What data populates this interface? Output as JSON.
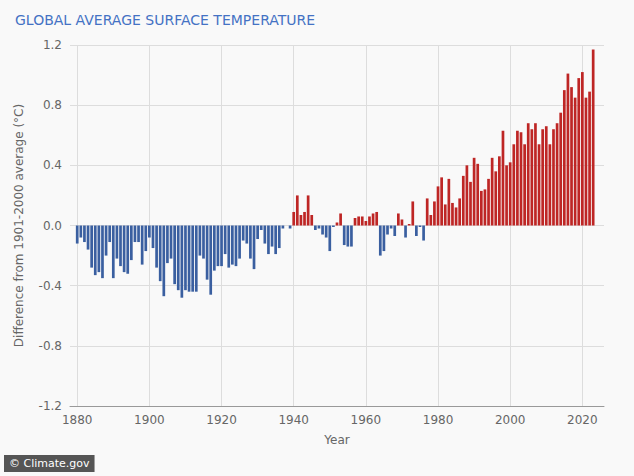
{
  "chart_data": {
    "type": "bar",
    "title": "GLOBAL AVERAGE SURFACE TEMPERATURE",
    "xlabel": "Year",
    "ylabel": "Difference from 1901-2000 average (°C)",
    "annotations": [
      "© Climate.gov"
    ],
    "x": [
      1880,
      1881,
      1882,
      1883,
      1884,
      1885,
      1886,
      1887,
      1888,
      1889,
      1890,
      1891,
      1892,
      1893,
      1894,
      1895,
      1896,
      1897,
      1898,
      1899,
      1900,
      1901,
      1902,
      1903,
      1904,
      1905,
      1906,
      1907,
      1908,
      1909,
      1910,
      1911,
      1912,
      1913,
      1914,
      1915,
      1916,
      1917,
      1918,
      1919,
      1920,
      1921,
      1922,
      1923,
      1924,
      1925,
      1926,
      1927,
      1928,
      1929,
      1930,
      1931,
      1932,
      1933,
      1934,
      1935,
      1936,
      1937,
      1938,
      1939,
      1940,
      1941,
      1942,
      1943,
      1944,
      1945,
      1946,
      1947,
      1948,
      1949,
      1950,
      1951,
      1952,
      1953,
      1954,
      1955,
      1956,
      1957,
      1958,
      1959,
      1960,
      1961,
      1962,
      1963,
      1964,
      1965,
      1966,
      1967,
      1968,
      1969,
      1970,
      1971,
      1972,
      1973,
      1974,
      1975,
      1976,
      1977,
      1978,
      1979,
      1980,
      1981,
      1982,
      1983,
      1984,
      1985,
      1986,
      1987,
      1988,
      1989,
      1990,
      1991,
      1992,
      1993,
      1994,
      1995,
      1996,
      1997,
      1998,
      1999,
      2000,
      2001,
      2002,
      2003,
      2004,
      2005,
      2006,
      2007,
      2008,
      2009,
      2010,
      2011,
      2012,
      2013,
      2014,
      2015,
      2016,
      2017,
      2018,
      2019,
      2020,
      2021,
      2022,
      2023
    ],
    "values": [
      -0.12,
      -0.08,
      -0.11,
      -0.16,
      -0.28,
      -0.33,
      -0.31,
      -0.35,
      -0.2,
      -0.11,
      -0.35,
      -0.22,
      -0.27,
      -0.31,
      -0.32,
      -0.23,
      -0.11,
      -0.11,
      -0.26,
      -0.17,
      -0.08,
      -0.15,
      -0.28,
      -0.37,
      -0.47,
      -0.25,
      -0.22,
      -0.39,
      -0.43,
      -0.48,
      -0.43,
      -0.44,
      -0.44,
      -0.44,
      -0.2,
      -0.22,
      -0.36,
      -0.46,
      -0.3,
      -0.27,
      -0.27,
      -0.19,
      -0.28,
      -0.26,
      -0.27,
      -0.22,
      -0.1,
      -0.12,
      -0.22,
      -0.29,
      -0.09,
      -0.03,
      -0.12,
      -0.19,
      -0.14,
      -0.19,
      -0.15,
      -0.02,
      -0.0,
      -0.02,
      0.09,
      0.2,
      0.07,
      0.09,
      0.2,
      0.07,
      -0.03,
      -0.02,
      -0.06,
      -0.08,
      -0.17,
      -0.01,
      0.02,
      0.08,
      -0.13,
      -0.14,
      -0.14,
      0.05,
      0.06,
      0.06,
      0.03,
      0.06,
      0.08,
      0.09,
      -0.2,
      -0.17,
      -0.06,
      -0.02,
      -0.07,
      0.08,
      0.04,
      -0.08,
      0.01,
      0.16,
      -0.07,
      -0.01,
      -0.1,
      0.18,
      0.07,
      0.16,
      0.26,
      0.32,
      0.14,
      0.31,
      0.15,
      0.12,
      0.18,
      0.33,
      0.4,
      0.29,
      0.45,
      0.41,
      0.23,
      0.24,
      0.31,
      0.45,
      0.36,
      0.46,
      0.63,
      0.4,
      0.42,
      0.54,
      0.63,
      0.62,
      0.54,
      0.68,
      0.64,
      0.68,
      0.54,
      0.64,
      0.66,
      0.54,
      0.64,
      0.68,
      0.75,
      0.9,
      1.01,
      0.92,
      0.85,
      0.98,
      1.02,
      0.85,
      0.89,
      1.17
    ],
    "colors": [
      "#3A5FA0",
      "#3A5FA0",
      "#3A5FA0",
      "#3A5FA0",
      "#3A5FA0",
      "#3A5FA0",
      "#3A5FA0",
      "#3A5FA0",
      "#3A5FA0",
      "#3A5FA0",
      "#3A5FA0",
      "#3A5FA0",
      "#3A5FA0",
      "#3A5FA0",
      "#3A5FA0",
      "#3A5FA0",
      "#3A5FA0",
      "#3A5FA0",
      "#3A5FA0",
      "#3A5FA0",
      "#3A5FA0",
      "#3A5FA0",
      "#3A5FA0",
      "#3A5FA0",
      "#3A5FA0",
      "#3A5FA0",
      "#3A5FA0",
      "#3A5FA0",
      "#3A5FA0",
      "#3A5FA0",
      "#3A5FA0",
      "#3A5FA0",
      "#3A5FA0",
      "#3A5FA0",
      "#3A5FA0",
      "#3A5FA0",
      "#3A5FA0",
      "#3A5FA0",
      "#3A5FA0",
      "#3A5FA0",
      "#3A5FA0",
      "#3A5FA0",
      "#3A5FA0",
      "#3A5FA0",
      "#3A5FA0",
      "#3A5FA0",
      "#3A5FA0",
      "#3A5FA0",
      "#3A5FA0",
      "#3A5FA0",
      "#3A5FA0",
      "#3A5FA0",
      "#3A5FA0",
      "#3A5FA0",
      "#3A5FA0",
      "#3A5FA0",
      "#3A5FA0",
      "#3A5FA0",
      "#BE2625",
      "#3A5FA0",
      "#BE2625",
      "#BE2625",
      "#BE2625",
      "#BE2625",
      "#BE2625",
      "#BE2625",
      "#3A5FA0",
      "#3A5FA0",
      "#3A5FA0",
      "#3A5FA0",
      "#3A5FA0",
      "#3A5FA0",
      "#BE2625",
      "#BE2625",
      "#3A5FA0",
      "#3A5FA0",
      "#3A5FA0",
      "#BE2625",
      "#BE2625",
      "#BE2625",
      "#BE2625",
      "#BE2625",
      "#BE2625",
      "#BE2625",
      "#3A5FA0",
      "#3A5FA0",
      "#3A5FA0",
      "#3A5FA0",
      "#3A5FA0",
      "#BE2625",
      "#BE2625",
      "#3A5FA0",
      "#BE2625",
      "#BE2625",
      "#3A5FA0",
      "#3A5FA0",
      "#3A5FA0",
      "#BE2625",
      "#BE2625",
      "#BE2625",
      "#BE2625",
      "#BE2625",
      "#BE2625",
      "#BE2625",
      "#BE2625",
      "#BE2625",
      "#BE2625",
      "#BE2625",
      "#BE2625",
      "#BE2625",
      "#BE2625",
      "#BE2625",
      "#BE2625",
      "#BE2625",
      "#BE2625",
      "#BE2625",
      "#BE2625",
      "#BE2625",
      "#BE2625",
      "#BE2625",
      "#BE2625",
      "#BE2625",
      "#BE2625",
      "#BE2625",
      "#BE2625",
      "#BE2625",
      "#BE2625",
      "#BE2625",
      "#BE2625",
      "#BE2625",
      "#BE2625",
      "#BE2625",
      "#BE2625",
      "#BE2625",
      "#BE2625",
      "#BE2625",
      "#BE2625",
      "#BE2625",
      "#BE2625",
      "#BE2625",
      "#BE2625",
      "#BE2625",
      "#BE2625",
      "#BE2625"
    ],
    "xlim": [
      1878,
      2026
    ],
    "xticks": [
      1880,
      1900,
      1920,
      1940,
      1960,
      1980,
      2000,
      2020
    ],
    "ylim": [
      -1.2,
      1.2
    ],
    "yticks": [
      -1.2,
      -0.8,
      -0.4,
      {
        "value": 0,
        "label": "0.0"
      },
      0.4,
      0.8,
      1.2
    ],
    "grid": true
  }
}
